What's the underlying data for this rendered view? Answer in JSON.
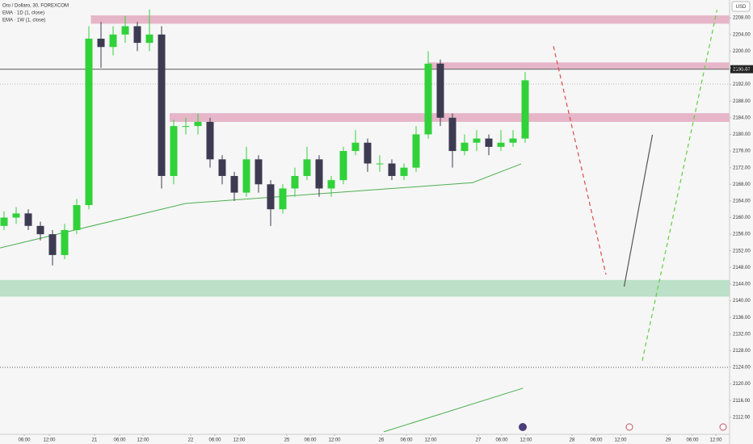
{
  "chart_data": {
    "type": "candlestick",
    "title": "Oro / Dollaro, 30, FOREXCOM",
    "currency": "USD",
    "up_color": "#31d13a",
    "down_color": "#3d3b52",
    "x": [
      2,
      8,
      14,
      20,
      26,
      32,
      38,
      44,
      50,
      56,
      62,
      68,
      74,
      80,
      86,
      92,
      98,
      104,
      110,
      116,
      122,
      128,
      134,
      140,
      146,
      152,
      158,
      164,
      170,
      176,
      182,
      188,
      194,
      200,
      206,
      212,
      218,
      224,
      230,
      236,
      242,
      248,
      254,
      260
    ],
    "open": [
      2158,
      2160,
      2161,
      2158,
      2156,
      2151,
      2157,
      2163,
      2203,
      2201,
      2204,
      2206,
      2202,
      2204,
      2170,
      2182,
      2182,
      2183,
      2174,
      2170,
      2166,
      2174,
      2168,
      2162,
      2167,
      2170,
      2174,
      2167,
      2169,
      2176,
      2178,
      2173,
      2173,
      2170,
      2172,
      2180,
      2197,
      2184,
      2176,
      2178,
      2179,
      2177,
      2178,
      2179
    ],
    "high": [
      2161.5,
      2162.5,
      2162,
      2159,
      2157,
      2158.5,
      2164.5,
      2206,
      2207,
      2206,
      2208.5,
      2207,
      2210,
      2206,
      2183.5,
      2184,
      2185,
      2184,
      2175,
      2171,
      2177,
      2175,
      2169,
      2168,
      2172,
      2177,
      2175,
      2170,
      2177,
      2181,
      2179,
      2175,
      2174,
      2173,
      2182,
      2200,
      2198,
      2185,
      2180,
      2181,
      2180,
      2181,
      2181,
      2195
    ],
    "low": [
      2157,
      2158.5,
      2157,
      2154.5,
      2148.5,
      2150,
      2156,
      2162,
      2196,
      2199,
      2202,
      2200,
      2200,
      2167,
      2168,
      2180,
      2180,
      2172,
      2168,
      2164,
      2165,
      2166,
      2158,
      2161,
      2165,
      2169,
      2165,
      2165,
      2168,
      2175,
      2171,
      2171,
      2169,
      2169,
      2171,
      2179,
      2182,
      2172,
      2175,
      2176,
      2175,
      2176,
      2177,
      2178
    ],
    "close": [
      2160,
      2161,
      2158,
      2156,
      2151,
      2157,
      2163,
      2203,
      2201,
      2204,
      2206,
      2202,
      2204,
      2170,
      2182,
      2182,
      2183,
      2174,
      2170,
      2166,
      2174,
      2168,
      2162,
      2167,
      2170,
      2174,
      2167,
      2169,
      2176,
      2178,
      2173,
      2173,
      2170,
      2172,
      2180,
      2197,
      2184,
      2176,
      2178,
      2179,
      2177,
      2178,
      2179,
      2193
    ],
    "series": [
      {
        "name": "EMA · 1D (1, close)",
        "color": "#4caf50",
        "x": [
          0,
          92,
          234,
          258
        ],
        "values": [
          2152.7,
          2163.4,
          2168.4,
          2172.9
        ]
      },
      {
        "name": "EMA · 1W (1, close)",
        "color": "#4caf50",
        "x": [
          190,
          259
        ],
        "values": [
          2108.5,
          2119.0
        ]
      }
    ],
    "zones": [
      {
        "x": 45,
        "from": 2206.6,
        "to": 2208.6,
        "color": "#e0a0b8"
      },
      {
        "x": 212,
        "from": 2195.8,
        "to": 2197.3,
        "color": "#e0a0b8"
      },
      {
        "x": 84,
        "from": 2183.0,
        "to": 2185.1,
        "color": "#e0a0b8"
      },
      {
        "x": 0,
        "from": 2141.0,
        "to": 2145.0,
        "color": "#a8d8b8"
      }
    ],
    "hlines": [
      {
        "value": 2195.67,
        "label": "2195.67",
        "color": "#555555"
      },
      {
        "value": 2192.1,
        "color": "#bbbbbb"
      },
      {
        "value": 2124.0,
        "color": "#555555"
      }
    ],
    "drawings": [
      {
        "x": [
          274,
          300
        ],
        "values": [
          2201.2,
          2146.3
        ],
        "color": "#e04848",
        "dashed": true
      },
      {
        "x": [
          309,
          323
        ],
        "values": [
          2143.4,
          2179.9
        ],
        "color": "#555555",
        "dashed": false
      },
      {
        "x": [
          318,
          355
        ],
        "values": [
          2125.6,
          2209.9
        ],
        "color": "#5fcf3f",
        "dashed": true
      }
    ],
    "xlim": [
      0,
      361.2
    ],
    "ylim": [
      2107.9,
      2212.3
    ],
    "xticks": [
      {
        "value": 12,
        "label": "06:00"
      },
      {
        "value": 24.4,
        "label": "12:00"
      },
      46.8,
      {
        "value": 59.2,
        "label": "06:00"
      },
      {
        "value": 70.8,
        "label": "12:00"
      },
      94.4,
      {
        "value": 106.4,
        "label": "06:00"
      },
      {
        "value": 118.4,
        "label": "12:00"
      },
      142,
      {
        "value": 153.6,
        "label": "06:00"
      },
      {
        "value": 165.6,
        "label": "12:00"
      },
      188.8,
      {
        "value": 201.2,
        "label": "06:00"
      },
      {
        "value": 213.2,
        "label": "12:00"
      },
      236.8,
      {
        "value": 248.4,
        "label": "06:00"
      },
      {
        "value": 260.4,
        "label": "12:00"
      },
      283.2,
      {
        "value": 295.2,
        "label": "06:00"
      },
      {
        "value": 307.2,
        "label": "12:00"
      },
      330.8,
      {
        "value": 342.8,
        "label": "06:00"
      },
      {
        "value": 354.4,
        "label": "12:00"
      }
    ],
    "xtick_texts": [
      "21",
      "22",
      "25",
      "26",
      "27",
      "28",
      "29"
    ],
    "yticks": [
      {
        "value": 2112,
        "label": "2112.00"
      },
      {
        "value": 2116,
        "label": "2116.00"
      },
      {
        "value": 2120,
        "label": "2120.00"
      },
      {
        "value": 2124,
        "label": "2124.00"
      },
      {
        "value": 2128,
        "label": "2128.00"
      },
      {
        "value": 2132,
        "label": "2132.00"
      },
      {
        "value": 2136,
        "label": "2136.00"
      },
      {
        "value": 2140,
        "label": "2140.00"
      },
      {
        "value": 2144,
        "label": "2144.00"
      },
      {
        "value": 2148,
        "label": "2148.00"
      },
      {
        "value": 2152,
        "label": "2152.00"
      },
      {
        "value": 2156,
        "label": "2156.00"
      },
      {
        "value": 2160,
        "label": "2160.00"
      },
      {
        "value": 2164,
        "label": "2164.00"
      },
      {
        "value": 2168,
        "label": "2168.00"
      },
      {
        "value": 2172,
        "label": "2172.00"
      },
      {
        "value": 2176,
        "label": "2176.00"
      },
      {
        "value": 2180,
        "label": "2180.00"
      },
      {
        "value": 2184,
        "label": "2184.00"
      },
      {
        "value": 2188,
        "label": "2188.00"
      },
      {
        "value": 2192,
        "label": "2192.00"
      },
      {
        "value": 2196,
        "label": "2196.00"
      },
      {
        "value": 2200,
        "label": "2200.00"
      },
      {
        "value": 2204,
        "label": "2204.00"
      },
      {
        "value": 2208,
        "label": "2208.00"
      }
    ]
  }
}
